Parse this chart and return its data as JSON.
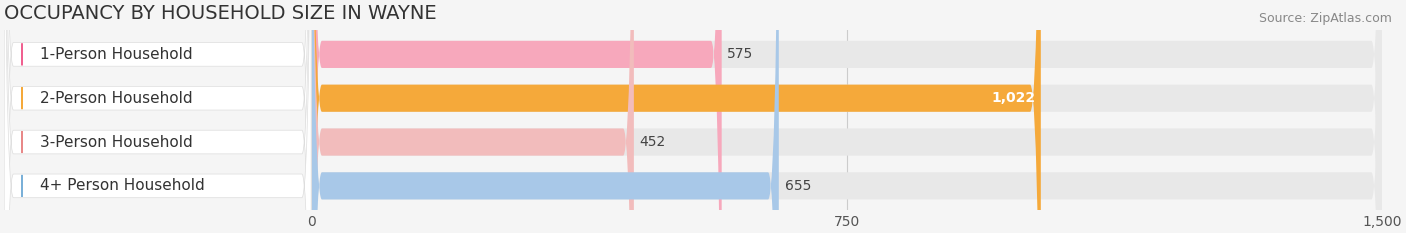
{
  "title": "OCCUPANCY BY HOUSEHOLD SIZE IN WAYNE",
  "source": "Source: ZipAtlas.com",
  "categories": [
    "1-Person Household",
    "2-Person Household",
    "3-Person Household",
    "4+ Person Household"
  ],
  "values": [
    575,
    1022,
    452,
    655
  ],
  "bar_colors": [
    "#f7a8bc",
    "#f5a93a",
    "#f2bcbc",
    "#a8c8e8"
  ],
  "dot_colors": [
    "#f06090",
    "#f5a93a",
    "#e88888",
    "#7ab0d8"
  ],
  "xlim": [
    0,
    1500
  ],
  "xticks": [
    0,
    750,
    1500
  ],
  "background_color": "#f5f5f5",
  "bar_bg_color": "#e8e8e8",
  "white_label_bg": "#ffffff",
  "title_fontsize": 14,
  "source_fontsize": 9,
  "label_fontsize": 11,
  "value_fontsize": 10,
  "bar_height": 0.62,
  "fig_width": 14.06,
  "fig_height": 2.33,
  "dpi": 100
}
